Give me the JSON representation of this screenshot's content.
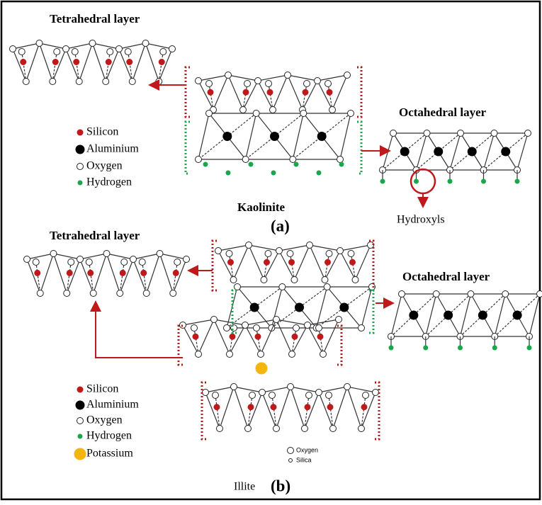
{
  "panel_a": {
    "tetrahedral_label": "Tetrahedral layer",
    "octahedral_label": "Octahedral layer",
    "legend": [
      "Silicon",
      "Aluminium",
      "Oxygen",
      "Hydrogen"
    ],
    "mineral": "Kaolinite",
    "caption": "(a)",
    "hydroxyls_label": "Hydroxyls"
  },
  "panel_b": {
    "tetrahedral_label": "Tetrahedral layer",
    "octahedral_label": "Octahedral layer",
    "legend": [
      "Silicon",
      "Aluminium",
      "Oxygen",
      "Hydrogen",
      "Potassium"
    ],
    "inset_legend": [
      "Oxygen",
      "Silica"
    ],
    "mineral": "Illite",
    "caption": "(b)"
  }
}
